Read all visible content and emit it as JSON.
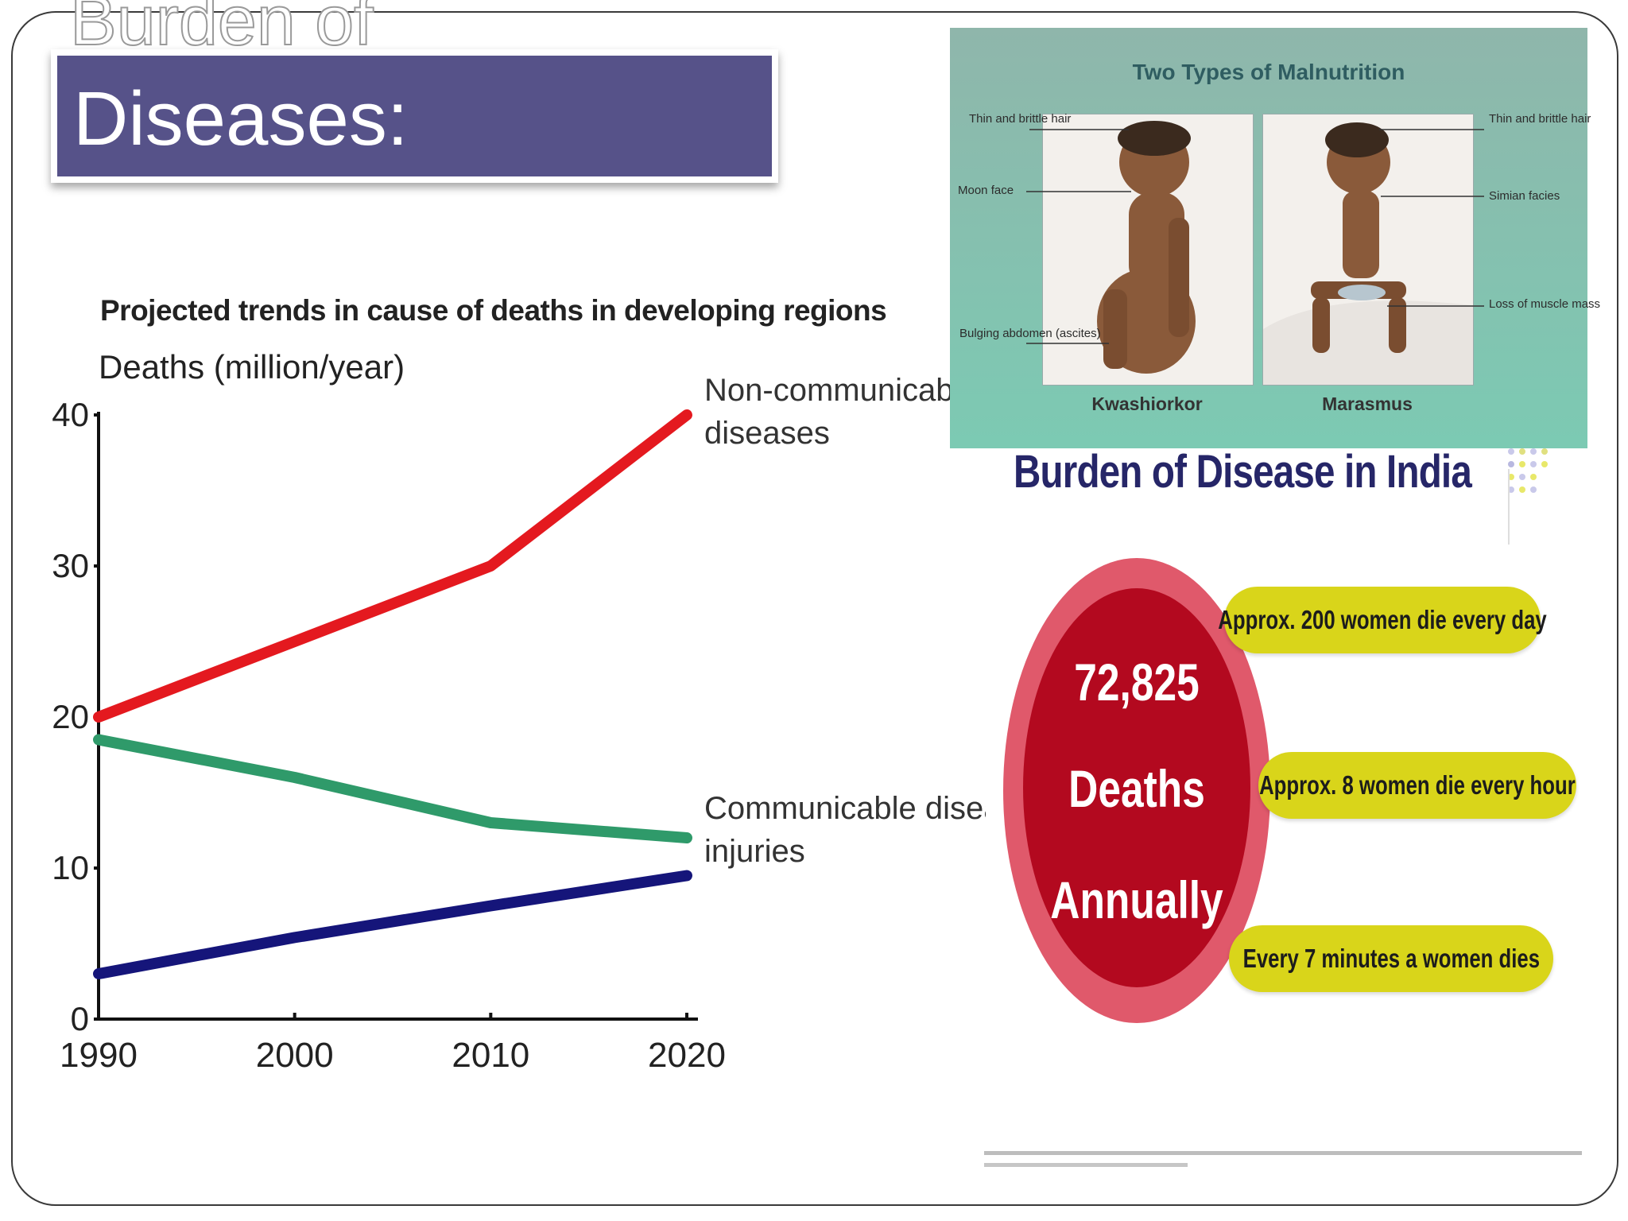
{
  "slide": {
    "title_ghost": "Burden of",
    "title": "Diseases:"
  },
  "chart_data": {
    "type": "line",
    "title": "Projected trends in cause of deaths in developing regions",
    "ylabel": "Deaths (million/year)",
    "xlabel": "",
    "x": [
      1990,
      2000,
      2010,
      2020
    ],
    "x_ticks": [
      "1990",
      "2000",
      "2010",
      "2020"
    ],
    "y_ticks": [
      "0",
      "10",
      "20",
      "30",
      "40"
    ],
    "ylim": [
      0,
      40
    ],
    "xlim": [
      1990,
      2020
    ],
    "grid": false,
    "series": [
      {
        "name": "Non-communicable diseases",
        "label_lines": [
          "Non-communicable",
          "diseases"
        ],
        "values": [
          20,
          25,
          30,
          40
        ],
        "color": "#e4191f"
      },
      {
        "name": "Communicable diseases",
        "label_lines": [
          "Communicable diseases"
        ],
        "values": [
          18.5,
          16,
          13,
          12
        ],
        "color": "#2f9a6a"
      },
      {
        "name": "injuries",
        "label_lines": [
          "injuries"
        ],
        "values": [
          3,
          5.4,
          7.5,
          9.5
        ],
        "color": "#15157a"
      }
    ]
  },
  "malnutrition": {
    "title": "Two Types of Malnutrition",
    "left_labels": [
      "Thin and brittle hair",
      "Moon face",
      "Bulging abdomen (ascites)"
    ],
    "right_labels": [
      "Thin and brittle hair",
      "Simian facies",
      "Loss of muscle mass"
    ],
    "captions": [
      "Kwashiorkor",
      "Marasmus"
    ],
    "colors": {
      "panel": "#8fb6ab",
      "title": "#2f5d61"
    }
  },
  "india": {
    "title": "Burden of Disease in India",
    "circle_lines": [
      "72,825",
      "Deaths",
      "Annually"
    ],
    "pills": [
      "Approx. 200 women die every day",
      "Approx. 8 women die every hour",
      "Every 7 minutes a women dies"
    ],
    "colors": {
      "outer": "#e0596b",
      "inner": "#b3091f",
      "pill": "#d9d51a",
      "title": "#262668"
    }
  }
}
